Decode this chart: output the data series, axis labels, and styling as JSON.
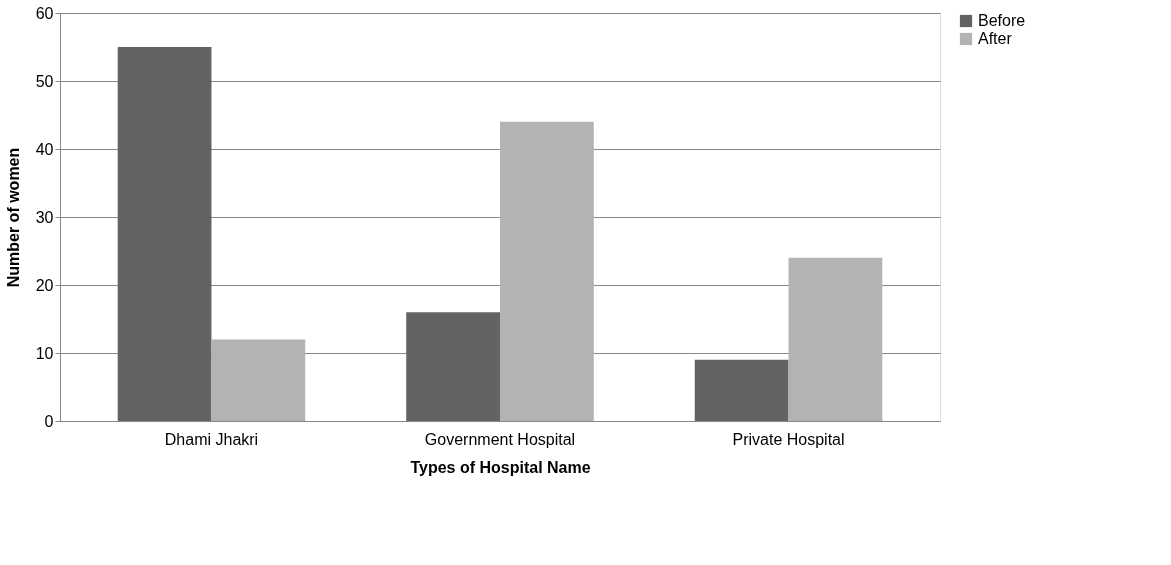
{
  "chart_data": {
    "type": "bar",
    "xlabel": "Types of Hospital Name",
    "ylabel": "Number of women",
    "categories": [
      "Dhami Jhakri",
      "Government Hospital",
      "Private Hospital"
    ],
    "series": [
      {
        "name": "Before",
        "color": "#636363",
        "values": [
          55,
          16,
          9
        ]
      },
      {
        "name": "After",
        "color": "#b3b3b3",
        "values": [
          12,
          44,
          24
        ]
      }
    ],
    "ylim": [
      0,
      60
    ],
    "yticks": [
      0,
      10,
      20,
      30,
      40,
      50,
      60
    ],
    "grid": "y",
    "legend": "right"
  }
}
